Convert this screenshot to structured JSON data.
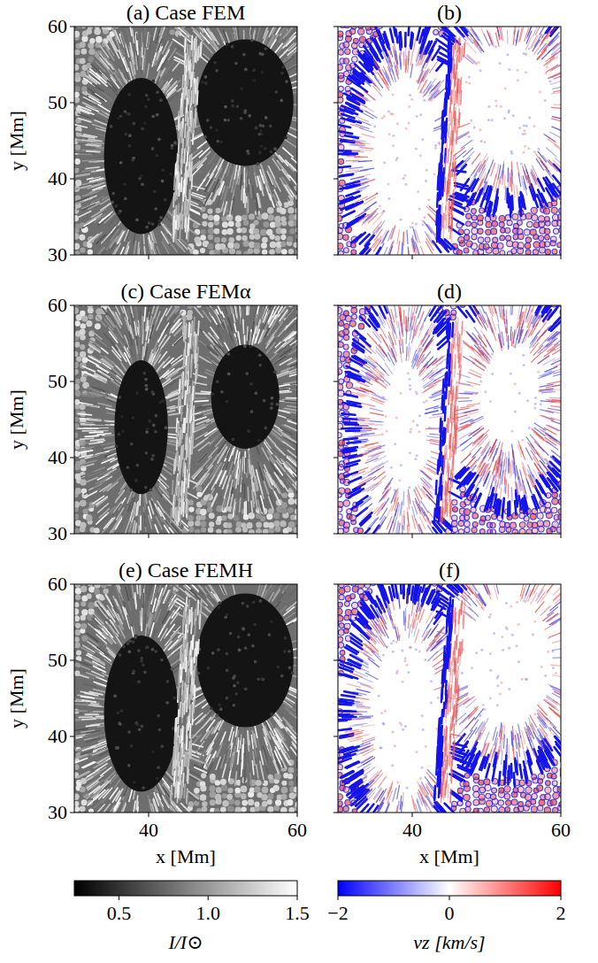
{
  "chart_data": [
    {
      "type": "image",
      "title": "(a) Case FEM",
      "color": "gray",
      "xlim": [
        30,
        60
      ],
      "ylim": [
        30,
        60
      ],
      "xticks": [
        40,
        60
      ],
      "yticks": [
        30,
        40,
        50,
        60
      ],
      "y_label": "y [Mm]",
      "tick_labels": "y"
    },
    {
      "type": "image",
      "title": "(b)",
      "color": "bwr",
      "xlim": [
        30,
        60
      ],
      "ylim": [
        30,
        60
      ],
      "xticks": [
        40,
        60
      ],
      "yticks": [
        30,
        40,
        50,
        60
      ],
      "tick_labels": false
    },
    {
      "type": "image",
      "title": "(c) Case FEMα",
      "color": "gray",
      "xlim": [
        30,
        60
      ],
      "ylim": [
        30,
        60
      ],
      "xticks": [
        40,
        60
      ],
      "yticks": [
        30,
        40,
        50,
        60
      ],
      "y_label": "y [Mm]",
      "tick_labels": "y"
    },
    {
      "type": "image",
      "title": "(d)",
      "color": "bwr",
      "xlim": [
        30,
        60
      ],
      "ylim": [
        30,
        60
      ],
      "xticks": [
        40,
        60
      ],
      "yticks": [
        30,
        40,
        50,
        60
      ],
      "tick_labels": false
    },
    {
      "type": "image",
      "title": "(e) Case FEMH",
      "color": "gray",
      "xlim": [
        30,
        60
      ],
      "ylim": [
        30,
        60
      ],
      "xticks": [
        40,
        60
      ],
      "yticks": [
        30,
        40,
        50,
        60
      ],
      "x_label": "x [Mm]",
      "y_label": "y [Mm]",
      "tick_labels": true
    },
    {
      "type": "image",
      "title": "(f)",
      "color": "bwr",
      "xlim": [
        30,
        60
      ],
      "ylim": [
        30,
        60
      ],
      "xticks": [
        40,
        60
      ],
      "yticks": [
        30,
        40,
        50,
        60
      ],
      "x_label": "x [Mm]",
      "tick_labels": "x"
    },
    {
      "type": "colorbar",
      "color": "gray",
      "x_label": "I/I⊙",
      "xlim": [
        0.25,
        1.5
      ],
      "xticks": [
        0.5,
        {
          "value": 1,
          "label": "1.0"
        },
        1.5
      ]
    },
    {
      "type": "colorbar",
      "color": "bwr",
      "x_label": "vz [km/s]",
      "xlim": [
        -2,
        2
      ],
      "xticks": [
        {
          "value": -2,
          "label": "−2"
        },
        0,
        2
      ]
    }
  ]
}
